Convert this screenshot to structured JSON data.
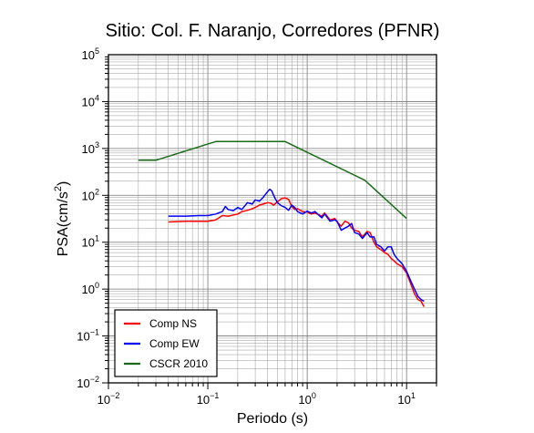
{
  "chart_data": {
    "type": "line",
    "title": "Sitio: Col. F. Naranjo, Corredores (PFNR)",
    "xlabel": "Periodo (s)",
    "ylabel": "PSA(cm/s²)",
    "ylabel_base": "PSA(cm/s",
    "ylabel_sup": "2",
    "ylabel_end": ")",
    "x_scale": "log",
    "y_scale": "log",
    "xlim": [
      0.01,
      20
    ],
    "ylim": [
      0.01,
      100000
    ],
    "grid": true,
    "legend_position": "bottom-left",
    "x_ticks": [
      {
        "base": "10",
        "exp": "−2",
        "value": 0.01
      },
      {
        "base": "10",
        "exp": "−1",
        "value": 0.1
      },
      {
        "base": "10",
        "exp": "0",
        "value": 1
      },
      {
        "base": "10",
        "exp": "1",
        "value": 10
      }
    ],
    "y_ticks": [
      {
        "base": "10",
        "exp": "−2",
        "value": 0.01
      },
      {
        "base": "10",
        "exp": "−1",
        "value": 0.1
      },
      {
        "base": "10",
        "exp": "0",
        "value": 1
      },
      {
        "base": "10",
        "exp": "1",
        "value": 10
      },
      {
        "base": "10",
        "exp": "2",
        "value": 100
      },
      {
        "base": "10",
        "exp": "3",
        "value": 1000
      },
      {
        "base": "10",
        "exp": "4",
        "value": 10000
      },
      {
        "base": "10",
        "exp": "5",
        "value": 100000
      }
    ],
    "series": [
      {
        "name": "Comp NS",
        "color": "#ff0000",
        "x": [
          0.04,
          0.06,
          0.08,
          0.1,
          0.12,
          0.14,
          0.16,
          0.18,
          0.2,
          0.22,
          0.25,
          0.28,
          0.3,
          0.33,
          0.36,
          0.4,
          0.43,
          0.46,
          0.5,
          0.55,
          0.6,
          0.65,
          0.7,
          0.75,
          0.8,
          0.9,
          1.0,
          1.1,
          1.2,
          1.4,
          1.5,
          1.7,
          1.9,
          2.0,
          2.2,
          2.4,
          2.6,
          2.8,
          3.0,
          3.3,
          3.6,
          4.0,
          4.3,
          4.7,
          5.0,
          5.5,
          6.0,
          6.5,
          7.0,
          7.5,
          8.0,
          9.0,
          10,
          11,
          12,
          13,
          14,
          15
        ],
        "y": [
          27,
          28,
          28,
          28,
          30,
          37,
          36,
          38,
          40,
          45,
          48,
          52,
          55,
          62,
          65,
          70,
          68,
          62,
          72,
          85,
          88,
          82,
          58,
          50,
          52,
          45,
          44,
          40,
          42,
          36,
          42,
          30,
          32,
          27,
          22,
          28,
          26,
          20,
          18,
          17,
          13,
          17,
          16,
          10,
          8,
          7,
          6,
          5.5,
          4.5,
          4,
          3.5,
          3,
          2.2,
          1.3,
          0.8,
          0.6,
          0.55,
          0.42
        ]
      },
      {
        "name": "Comp EW",
        "color": "#0000ff",
        "x": [
          0.04,
          0.06,
          0.08,
          0.1,
          0.12,
          0.14,
          0.15,
          0.16,
          0.18,
          0.2,
          0.22,
          0.25,
          0.28,
          0.3,
          0.33,
          0.36,
          0.4,
          0.42,
          0.44,
          0.46,
          0.5,
          0.55,
          0.6,
          0.65,
          0.7,
          0.75,
          0.8,
          0.9,
          1.0,
          1.1,
          1.2,
          1.4,
          1.5,
          1.7,
          1.9,
          2.0,
          2.2,
          2.4,
          2.6,
          2.8,
          3.0,
          3.3,
          3.6,
          4.0,
          4.3,
          4.7,
          5.0,
          5.5,
          6.0,
          6.5,
          7.0,
          7.5,
          8.0,
          9.0,
          10,
          11,
          12,
          13,
          14,
          15
        ],
        "y": [
          36,
          36,
          37,
          37,
          40,
          45,
          58,
          50,
          47,
          55,
          50,
          70,
          65,
          80,
          75,
          90,
          120,
          135,
          125,
          100,
          70,
          60,
          55,
          48,
          62,
          55,
          45,
          40,
          46,
          42,
          45,
          33,
          40,
          28,
          30,
          28,
          18,
          20,
          22,
          25,
          16,
          15,
          12,
          16,
          13,
          13,
          9,
          8,
          6.5,
          8,
          8,
          5.5,
          4.5,
          3.5,
          2.4,
          1.5,
          1.0,
          0.7,
          0.6,
          0.55
        ]
      },
      {
        "name": "CSCR 2010",
        "color": "#1a6b1a",
        "x": [
          0.02,
          0.03,
          0.12,
          0.6,
          3.8,
          10
        ],
        "y": [
          560,
          560,
          1400,
          1400,
          210,
          32
        ]
      }
    ]
  }
}
